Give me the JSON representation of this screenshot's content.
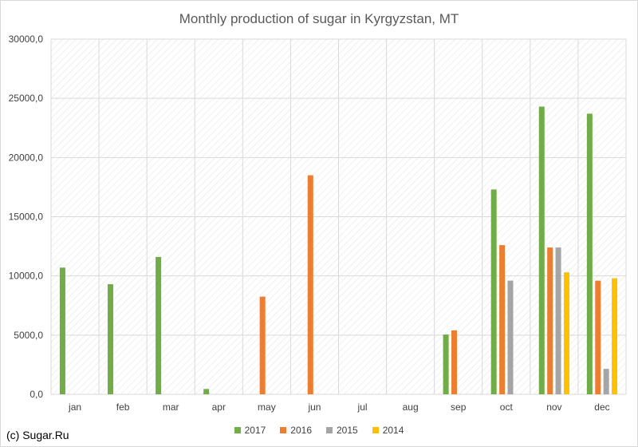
{
  "chart_data": {
    "type": "bar",
    "title": "Monthly production of sugar in Kyrgyzstan, MT",
    "categories": [
      "jan",
      "feb",
      "mar",
      "apr",
      "may",
      "jun",
      "jul",
      "aug",
      "sep",
      "oct",
      "nov",
      "dec"
    ],
    "series": [
      {
        "name": "2017",
        "color": "#70ad47",
        "values": [
          10700,
          9300,
          11600,
          450,
          null,
          null,
          null,
          null,
          5050,
          17300,
          24300,
          23700
        ]
      },
      {
        "name": "2016",
        "color": "#ed7d31",
        "values": [
          null,
          null,
          null,
          null,
          8250,
          18500,
          null,
          null,
          5400,
          12600,
          12400,
          9600
        ]
      },
      {
        "name": "2015",
        "color": "#a5a5a5",
        "values": [
          null,
          null,
          null,
          null,
          null,
          null,
          null,
          null,
          null,
          9600,
          12400,
          2150
        ]
      },
      {
        "name": "2014",
        "color": "#ffc000",
        "values": [
          null,
          null,
          null,
          null,
          null,
          null,
          null,
          null,
          null,
          null,
          10300,
          9800
        ]
      }
    ],
    "y_ticks": [
      "0,0",
      "5000,0",
      "10000,0",
      "15000,0",
      "20000,0",
      "25000,0",
      "30000,0"
    ],
    "ylim": [
      0,
      30000
    ],
    "xlabel": "",
    "ylabel": "",
    "grid": true,
    "legend_position": "bottom"
  },
  "credit": "(c) Sugar.Ru"
}
